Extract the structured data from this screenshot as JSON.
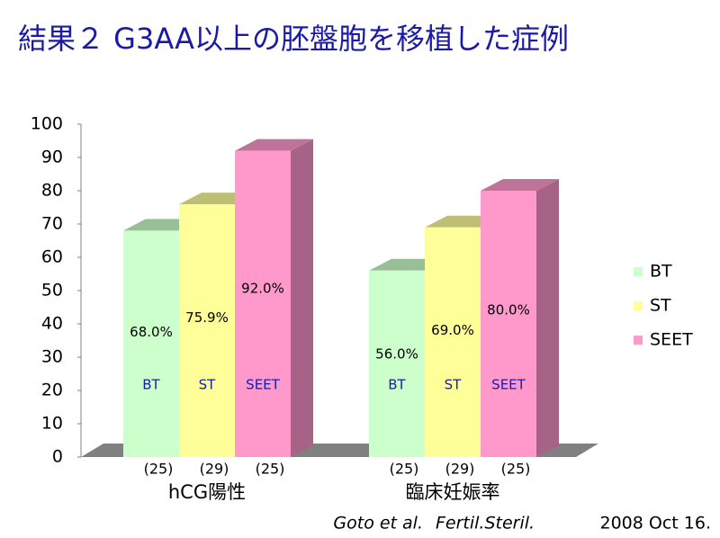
{
  "chart_data": {
    "type": "bar3d",
    "title": "結果２ G3AA以上の胚盤胞を移植した症例",
    "categories": [
      "hCG陽性",
      "臨床妊娠率"
    ],
    "series": [
      {
        "name": "BT",
        "color": "#ccffcc",
        "values": [
          68.0,
          56.0
        ],
        "value_labels": [
          "68.0%",
          "56.0%"
        ],
        "sample_sizes": [
          25,
          25
        ],
        "sample_size_labels": [
          "(25)",
          "(25)"
        ]
      },
      {
        "name": "ST",
        "color": "#ffff99",
        "values": [
          75.9,
          69.0
        ],
        "value_labels": [
          "75.9%",
          "69.0%"
        ],
        "sample_sizes": [
          29,
          29
        ],
        "sample_size_labels": [
          "(29)",
          "(29)"
        ]
      },
      {
        "name": "SEET",
        "color": "#ff99cc",
        "values": [
          92.0,
          80.0
        ],
        "value_labels": [
          "92.0%",
          "80.0%"
        ],
        "sample_sizes": [
          25,
          25
        ],
        "sample_size_labels": [
          "(25)",
          "(25)"
        ]
      }
    ],
    "ylim": [
      0,
      100
    ],
    "yticks": [
      0,
      10,
      20,
      30,
      40,
      50,
      60,
      70,
      80,
      90,
      100
    ],
    "legend": "right",
    "citation": {
      "authors": "Goto et al.",
      "journal": "Fertil.Steril.",
      "date": "2008 Oct 16."
    }
  }
}
